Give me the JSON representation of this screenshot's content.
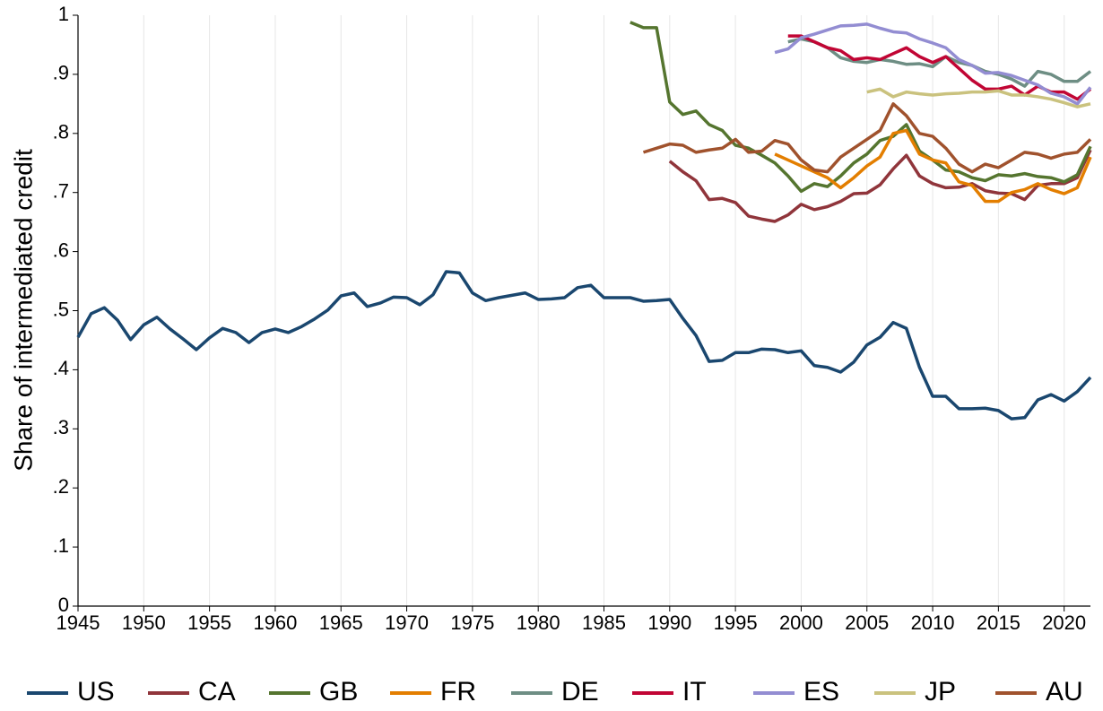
{
  "chart_data": {
    "type": "line",
    "y_label": "Share of intermediated credit",
    "xlim": [
      1945,
      2022
    ],
    "xticks": [
      1945,
      1950,
      1955,
      1960,
      1965,
      1970,
      1975,
      1980,
      1985,
      1990,
      1995,
      2000,
      2005,
      2010,
      2015,
      2020
    ],
    "ylim": [
      0,
      1
    ],
    "yticks": [
      0,
      {
        "value": 0.1,
        "label": ".1"
      },
      {
        "value": 0.2,
        "label": ".2"
      },
      {
        "value": 0.3,
        "label": ".3"
      },
      {
        "value": 0.4,
        "label": ".4"
      },
      {
        "value": 0.5,
        "label": ".5"
      },
      {
        "value": 0.6,
        "label": ".6"
      },
      {
        "value": 0.7,
        "label": ".7"
      },
      {
        "value": 0.8,
        "label": ".8"
      },
      {
        "value": 0.9,
        "label": ".9"
      },
      1
    ],
    "grid": "x",
    "legend": "bottom",
    "series": [
      {
        "name": "US",
        "color": "#1a476f",
        "x": [
          1945,
          1946,
          1947,
          1948,
          1949,
          1950,
          1951,
          1952,
          1953,
          1954,
          1955,
          1956,
          1957,
          1958,
          1959,
          1960,
          1961,
          1962,
          1963,
          1964,
          1965,
          1966,
          1967,
          1968,
          1969,
          1970,
          1971,
          1972,
          1973,
          1974,
          1975,
          1976,
          1977,
          1978,
          1979,
          1980,
          1981,
          1982,
          1983,
          1984,
          1985,
          1986,
          1987,
          1988,
          1989,
          1990,
          1991,
          1992,
          1993,
          1994,
          1995,
          1996,
          1997,
          1998,
          1999,
          2000,
          2001,
          2002,
          2003,
          2004,
          2005,
          2006,
          2007,
          2008,
          2009,
          2010,
          2011,
          2012,
          2013,
          2014,
          2015,
          2016,
          2017,
          2018,
          2019,
          2020,
          2021,
          2022
        ],
        "values": [
          0.455,
          0.495,
          0.505,
          0.484,
          0.451,
          0.476,
          0.489,
          0.469,
          0.452,
          0.434,
          0.454,
          0.47,
          0.463,
          0.446,
          0.463,
          0.469,
          0.463,
          0.473,
          0.486,
          0.501,
          0.525,
          0.53,
          0.507,
          0.513,
          0.523,
          0.522,
          0.51,
          0.527,
          0.566,
          0.564,
          0.53,
          0.517,
          0.522,
          0.526,
          0.53,
          0.519,
          0.52,
          0.522,
          0.539,
          0.543,
          0.522,
          0.522,
          0.522,
          0.516,
          0.517,
          0.519,
          0.487,
          0.458,
          0.414,
          0.416,
          0.429,
          0.429,
          0.435,
          0.434,
          0.429,
          0.432,
          0.407,
          0.404,
          0.396,
          0.413,
          0.442,
          0.455,
          0.48,
          0.47,
          0.404,
          0.355,
          0.355,
          0.334,
          0.334,
          0.335,
          0.331,
          0.317,
          0.319,
          0.349,
          0.358,
          0.347,
          0.363,
          0.387
        ]
      },
      {
        "name": "CA",
        "color": "#90353b",
        "x": [
          1990,
          1991,
          1992,
          1993,
          1994,
          1995,
          1996,
          1997,
          1998,
          1999,
          2000,
          2001,
          2002,
          2003,
          2004,
          2005,
          2006,
          2007,
          2008,
          2009,
          2010,
          2011,
          2012,
          2013,
          2014,
          2015,
          2016,
          2017,
          2018,
          2019,
          2020,
          2021,
          2022
        ],
        "values": [
          0.753,
          0.735,
          0.72,
          0.688,
          0.69,
          0.683,
          0.66,
          0.655,
          0.651,
          0.662,
          0.68,
          0.671,
          0.676,
          0.685,
          0.698,
          0.699,
          0.713,
          0.74,
          0.763,
          0.728,
          0.715,
          0.708,
          0.709,
          0.715,
          0.703,
          0.699,
          0.698,
          0.688,
          0.712,
          0.715,
          0.715,
          0.725,
          0.772
        ]
      },
      {
        "name": "GB",
        "color": "#55752f",
        "x": [
          1987,
          1988,
          1989,
          1990,
          1991,
          1992,
          1993,
          1994,
          1995,
          1996,
          1997,
          1998,
          1999,
          2000,
          2001,
          2002,
          2003,
          2004,
          2005,
          2006,
          2007,
          2008,
          2009,
          2010,
          2011,
          2012,
          2013,
          2014,
          2015,
          2016,
          2017,
          2018,
          2019,
          2020,
          2021,
          2022
        ],
        "values": [
          0.988,
          0.979,
          0.979,
          0.853,
          0.832,
          0.838,
          0.815,
          0.805,
          0.78,
          0.775,
          0.763,
          0.75,
          0.728,
          0.702,
          0.715,
          0.71,
          0.728,
          0.75,
          0.765,
          0.788,
          0.795,
          0.815,
          0.77,
          0.755,
          0.738,
          0.735,
          0.725,
          0.72,
          0.73,
          0.728,
          0.732,
          0.727,
          0.725,
          0.718,
          0.73,
          0.778
        ]
      },
      {
        "name": "FR",
        "color": "#e37e00",
        "x": [
          1998,
          1999,
          2000,
          2001,
          2002,
          2003,
          2004,
          2005,
          2006,
          2007,
          2008,
          2009,
          2010,
          2011,
          2012,
          2013,
          2014,
          2015,
          2016,
          2017,
          2018,
          2019,
          2020,
          2021,
          2022
        ],
        "values": [
          0.765,
          0.755,
          0.745,
          0.735,
          0.725,
          0.708,
          0.725,
          0.745,
          0.76,
          0.8,
          0.805,
          0.765,
          0.755,
          0.75,
          0.718,
          0.712,
          0.685,
          0.685,
          0.7,
          0.705,
          0.715,
          0.705,
          0.698,
          0.708,
          0.76
        ]
      },
      {
        "name": "DE",
        "color": "#6e8e84",
        "x": [
          1999,
          2000,
          2001,
          2002,
          2003,
          2004,
          2005,
          2006,
          2007,
          2008,
          2009,
          2010,
          2011,
          2012,
          2013,
          2014,
          2015,
          2016,
          2017,
          2018,
          2019,
          2020,
          2021,
          2022
        ],
        "values": [
          0.955,
          0.96,
          0.955,
          0.945,
          0.928,
          0.922,
          0.92,
          0.925,
          0.922,
          0.917,
          0.918,
          0.913,
          0.93,
          0.92,
          0.915,
          0.905,
          0.9,
          0.892,
          0.88,
          0.905,
          0.9,
          0.888,
          0.888,
          0.905
        ]
      },
      {
        "name": "IT",
        "color": "#c10534",
        "x": [
          1999,
          2000,
          2001,
          2002,
          2003,
          2004,
          2005,
          2006,
          2007,
          2008,
          2009,
          2010,
          2011,
          2012,
          2013,
          2014,
          2015,
          2016,
          2017,
          2018,
          2019,
          2020,
          2021,
          2022
        ],
        "values": [
          0.965,
          0.965,
          0.955,
          0.945,
          0.94,
          0.925,
          0.928,
          0.925,
          0.935,
          0.945,
          0.93,
          0.92,
          0.93,
          0.91,
          0.89,
          0.875,
          0.875,
          0.88,
          0.865,
          0.88,
          0.87,
          0.87,
          0.858,
          0.875
        ]
      },
      {
        "name": "ES",
        "color": "#938dd2",
        "x": [
          1998,
          1999,
          2000,
          2001,
          2002,
          2003,
          2004,
          2005,
          2006,
          2007,
          2008,
          2009,
          2010,
          2011,
          2012,
          2013,
          2014,
          2015,
          2016,
          2017,
          2018,
          2019,
          2020,
          2021,
          2022
        ],
        "values": [
          0.937,
          0.943,
          0.962,
          0.968,
          0.975,
          0.982,
          0.983,
          0.985,
          0.978,
          0.972,
          0.97,
          0.96,
          0.953,
          0.945,
          0.925,
          0.915,
          0.902,
          0.903,
          0.898,
          0.89,
          0.882,
          0.868,
          0.862,
          0.85,
          0.878
        ]
      },
      {
        "name": "JP",
        "color": "#cac27e",
        "x": [
          2005,
          2006,
          2007,
          2008,
          2009,
          2010,
          2011,
          2012,
          2013,
          2014,
          2015,
          2016,
          2017,
          2018,
          2019,
          2020,
          2021,
          2022
        ],
        "values": [
          0.87,
          0.875,
          0.862,
          0.87,
          0.867,
          0.865,
          0.867,
          0.868,
          0.87,
          0.87,
          0.872,
          0.865,
          0.865,
          0.862,
          0.858,
          0.852,
          0.845,
          0.85
        ]
      },
      {
        "name": "AU",
        "color": "#a0522d",
        "x": [
          1988,
          1989,
          1990,
          1991,
          1992,
          1993,
          1994,
          1995,
          1996,
          1997,
          1998,
          1999,
          2000,
          2001,
          2002,
          2003,
          2004,
          2005,
          2006,
          2007,
          2008,
          2009,
          2010,
          2011,
          2012,
          2013,
          2014,
          2015,
          2016,
          2017,
          2018,
          2019,
          2020,
          2021,
          2022
        ],
        "values": [
          0.768,
          0.775,
          0.782,
          0.78,
          0.768,
          0.772,
          0.775,
          0.79,
          0.768,
          0.77,
          0.788,
          0.782,
          0.755,
          0.738,
          0.735,
          0.76,
          0.775,
          0.79,
          0.805,
          0.85,
          0.83,
          0.8,
          0.795,
          0.775,
          0.748,
          0.735,
          0.748,
          0.742,
          0.755,
          0.768,
          0.765,
          0.758,
          0.765,
          0.768,
          0.79
        ]
      }
    ]
  }
}
